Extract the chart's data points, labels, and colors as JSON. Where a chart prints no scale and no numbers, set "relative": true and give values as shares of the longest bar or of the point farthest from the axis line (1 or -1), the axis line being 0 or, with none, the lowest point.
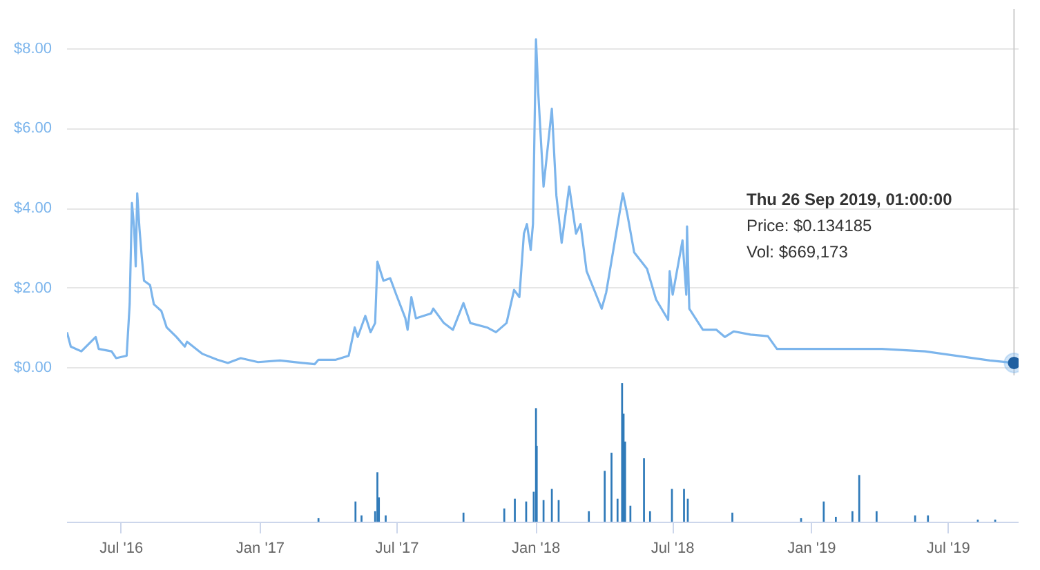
{
  "chart_data": [
    {
      "type": "line",
      "xlim": [
        "2016-04-20",
        "2019-10-02"
      ],
      "ylim": [
        -0.2,
        9.0
      ],
      "yticks": [
        {
          "value": 0,
          "label": "$0.00"
        },
        {
          "value": 2,
          "label": "$2.00"
        },
        {
          "value": 4,
          "label": "$4.00"
        },
        {
          "value": 6,
          "label": "$6.00"
        },
        {
          "value": 8,
          "label": "$8.00"
        }
      ],
      "grid": "y",
      "tick_labels": "y",
      "marker": "none",
      "line_style": "solid",
      "x": [
        "2016-04-20",
        "2016-04-25",
        "2016-05-09",
        "2016-05-28",
        "2016-06-01",
        "2016-06-18",
        "2016-06-24",
        "2016-07-08",
        "2016-07-12",
        "2016-07-15",
        "2016-07-18",
        "2016-07-20",
        "2016-07-22",
        "2016-07-25",
        "2016-07-28",
        "2016-07-31",
        "2016-08-08",
        "2016-08-13",
        "2016-08-23",
        "2016-08-30",
        "2016-09-12",
        "2016-09-23",
        "2016-09-26",
        "2016-10-16",
        "2016-11-05",
        "2016-11-19",
        "2016-12-06",
        "2016-12-29",
        "2017-01-27",
        "2017-02-25",
        "2017-03-14",
        "2017-03-19",
        "2017-04-11",
        "2017-04-28",
        "2017-05-06",
        "2017-05-10",
        "2017-05-20",
        "2017-05-27",
        "2017-06-02",
        "2017-06-05",
        "2017-06-13",
        "2017-06-22",
        "2017-06-30",
        "2017-07-12",
        "2017-07-15",
        "2017-07-20",
        "2017-07-26",
        "2017-08-15",
        "2017-08-18",
        "2017-09-01",
        "2017-09-13",
        "2017-09-27",
        "2017-10-06",
        "2017-10-28",
        "2017-11-09",
        "2017-11-23",
        "2017-12-03",
        "2017-12-10",
        "2017-12-16",
        "2017-12-20",
        "2017-12-25",
        "2017-12-28",
        "2018-01-01",
        "2018-01-04",
        "2018-01-11",
        "2018-01-22",
        "2018-01-28",
        "2018-02-04",
        "2018-02-14",
        "2018-02-23",
        "2018-03-01",
        "2018-03-09",
        "2018-03-29",
        "2018-04-04",
        "2018-04-15",
        "2018-04-26",
        "2018-05-02",
        "2018-05-11",
        "2018-05-28",
        "2018-06-09",
        "2018-06-25",
        "2018-06-27",
        "2018-07-01",
        "2018-07-14",
        "2018-07-19",
        "2018-07-20",
        "2018-07-23",
        "2018-08-10",
        "2018-08-28",
        "2018-09-08",
        "2018-09-20",
        "2018-10-12",
        "2018-11-04",
        "2018-11-16",
        "2018-12-09",
        "2019-04-04",
        "2019-05-31",
        "2019-08-25",
        "2019-09-26"
      ],
      "series": [
        {
          "color": "#7cb5ec",
          "values": [
            0.9,
            0.54,
            0.42,
            0.78,
            0.48,
            0.42,
            0.25,
            0.31,
            1.6,
            4.14,
            3.49,
            2.55,
            4.38,
            3.49,
            2.79,
            2.19,
            2.08,
            1.6,
            1.43,
            1.02,
            0.78,
            0.54,
            0.66,
            0.36,
            0.21,
            0.13,
            0.25,
            0.15,
            0.19,
            0.13,
            0.1,
            0.21,
            0.21,
            0.31,
            1.02,
            0.78,
            1.31,
            0.9,
            1.13,
            2.67,
            2.19,
            2.25,
            1.84,
            1.25,
            0.96,
            1.78,
            1.25,
            1.37,
            1.49,
            1.13,
            0.96,
            1.63,
            1.13,
            1.02,
            0.9,
            1.13,
            1.96,
            1.78,
            3.37,
            3.61,
            2.96,
            3.61,
            8.24,
            6.9,
            4.55,
            6.5,
            4.32,
            3.14,
            4.55,
            3.37,
            3.61,
            2.43,
            1.49,
            1.9,
            3.14,
            4.38,
            3.85,
            2.9,
            2.49,
            1.72,
            1.21,
            2.43,
            1.84,
            3.2,
            1.84,
            3.55,
            1.49,
            0.96,
            0.96,
            0.78,
            0.92,
            0.84,
            0.8,
            0.48,
            0.48,
            0.48,
            0.42,
            0.19,
            0.13
          ]
        }
      ],
      "ref_lines": [
        {
          "axis": "x",
          "value": "2019-09-26",
          "color": "#cccccc"
        }
      ],
      "annotations": [
        "Thu 26 Sep 2019, 01:00:00",
        "Price: $0.134185",
        "Vol: $669,173"
      ]
    },
    {
      "type": "bar",
      "relative": true,
      "xlim": [
        "2016-04-20",
        "2019-10-02"
      ],
      "xticks": [
        {
          "value": "2016-07-01",
          "label": "Jul '16"
        },
        {
          "value": "2017-01-01",
          "label": "Jan '17"
        },
        {
          "value": "2017-07-01",
          "label": "Jul '17"
        },
        {
          "value": "2018-01-01",
          "label": "Jan '18"
        },
        {
          "value": "2018-07-01",
          "label": "Jul '18"
        },
        {
          "value": "2019-01-01",
          "label": "Jan '19"
        },
        {
          "value": "2019-07-01",
          "label": "Jul '19"
        }
      ],
      "grid": false,
      "tick_labels": "x",
      "x": [
        "2017-03-19",
        "2017-05-07",
        "2017-05-15",
        "2017-06-02",
        "2017-06-05",
        "2017-06-07",
        "2017-06-16",
        "2017-09-27",
        "2017-11-20",
        "2017-12-04",
        "2017-12-19",
        "2017-12-29",
        "2018-01-01",
        "2018-01-02",
        "2018-01-11",
        "2018-01-22",
        "2018-01-31",
        "2018-03-12",
        "2018-04-02",
        "2018-04-11",
        "2018-04-19",
        "2018-04-25",
        "2018-04-27",
        "2018-04-29",
        "2018-05-06",
        "2018-05-24",
        "2018-06-01",
        "2018-06-30",
        "2018-07-16",
        "2018-07-21",
        "2018-09-18",
        "2018-12-18",
        "2019-01-17",
        "2019-02-02",
        "2019-02-24",
        "2019-03-05",
        "2019-03-28",
        "2019-05-18",
        "2019-06-04",
        "2019-08-09",
        "2019-09-01"
      ],
      "series": [
        {
          "color": "#2f7ab9",
          "values": [
            0.03,
            0.15,
            0.05,
            0.08,
            0.36,
            0.18,
            0.05,
            0.07,
            0.1,
            0.17,
            0.15,
            0.22,
            0.82,
            0.55,
            0.16,
            0.24,
            0.16,
            0.08,
            0.37,
            0.5,
            0.17,
            1.0,
            0.78,
            0.58,
            0.12,
            0.46,
            0.08,
            0.24,
            0.24,
            0.17,
            0.07,
            0.03,
            0.15,
            0.04,
            0.08,
            0.34,
            0.08,
            0.05,
            0.05,
            0.02,
            0.02
          ]
        }
      ]
    }
  ]
}
